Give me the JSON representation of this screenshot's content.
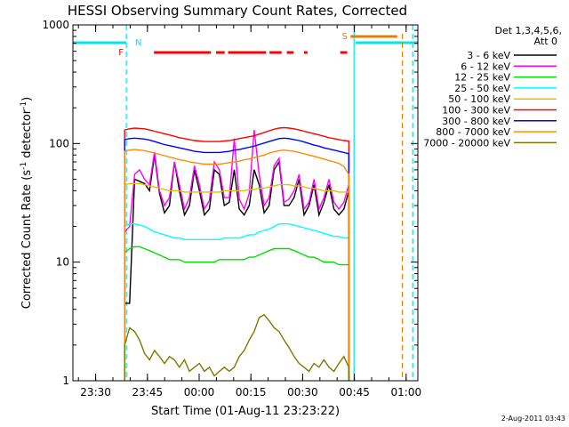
{
  "chart_data": {
    "type": "line",
    "title": "HESSI Observing Summary Count Rates, Corrected",
    "xlabel": "Start Time (01-Aug-11 23:23:22)",
    "ylabel_main": "Corrected Count Rate (s",
    "ylabel_sup1": "-1",
    "ylabel_mid": " detector",
    "ylabel_sup2": "-1",
    "ylabel_end": ")",
    "yscale": "log",
    "ylim": [
      1,
      1000
    ],
    "y_ticks": [
      {
        "v": 1,
        "label": "1"
      },
      {
        "v": 10,
        "label": "10"
      },
      {
        "v": 100,
        "label": "100"
      },
      {
        "v": 1000,
        "label": "1000"
      }
    ],
    "x_unit": "minutes since 23:23:22",
    "xlim": [
      0,
      100
    ],
    "x_ticks": [
      {
        "v": 6.6,
        "label": "23:30"
      },
      {
        "v": 21.6,
        "label": "23:45"
      },
      {
        "v": 36.6,
        "label": "00:00"
      },
      {
        "v": 51.6,
        "label": "00:15"
      },
      {
        "v": 66.6,
        "label": "00:30"
      },
      {
        "v": 81.6,
        "label": "00:45"
      },
      {
        "v": 96.6,
        "label": "01:00"
      }
    ],
    "legend_placement": "right",
    "legend_title_1": "Det 1,3,4,5,6,",
    "legend_title_2": "Att 0",
    "data_start": 15,
    "data_end": 80,
    "series": [
      {
        "name": "3 - 6 keV",
        "color": "#000000",
        "values": [
          4.5,
          4.5,
          50,
          48,
          46,
          40,
          80,
          38,
          26,
          30,
          70,
          40,
          25,
          30,
          60,
          40,
          25,
          28,
          60,
          55,
          30,
          32,
          60,
          28,
          25,
          30,
          60,
          45,
          26,
          30,
          60,
          70,
          30,
          30,
          35,
          50,
          25,
          30,
          45,
          25,
          32,
          45,
          28,
          25,
          28,
          40
        ]
      },
      {
        "name": "6 - 12 keV",
        "color": "#ff00ff",
        "values": [
          18,
          20,
          55,
          60,
          50,
          45,
          85,
          40,
          30,
          35,
          70,
          45,
          28,
          35,
          65,
          45,
          28,
          33,
          70,
          60,
          35,
          35,
          110,
          34,
          28,
          38,
          130,
          55,
          30,
          35,
          65,
          75,
          32,
          34,
          40,
          55,
          28,
          32,
          50,
          28,
          35,
          50,
          32,
          28,
          32,
          45
        ]
      },
      {
        "name": "12 - 25 keV",
        "color": "#00e000",
        "values": [
          12,
          13,
          13.5,
          13.5,
          13,
          12.5,
          12,
          11.5,
          11,
          10.5,
          10.5,
          10.5,
          10,
          10,
          10,
          10,
          10,
          10,
          10,
          10.5,
          10.5,
          10.5,
          10.5,
          10.5,
          10.5,
          11,
          11,
          11.5,
          12,
          12.5,
          13,
          13,
          13,
          13,
          12.5,
          12,
          11.5,
          11,
          11,
          10.5,
          10,
          10,
          10,
          9.5,
          9.5,
          9.5
        ]
      },
      {
        "name": "25 - 50 keV",
        "color": "#00ffff",
        "values": [
          20,
          21,
          21,
          20.5,
          20,
          19,
          18,
          17.5,
          17,
          16.5,
          16,
          16,
          15.5,
          15.5,
          15.5,
          15.5,
          15.5,
          15.5,
          15.5,
          15.5,
          16,
          16,
          16,
          16,
          16.5,
          17,
          17,
          18,
          18.5,
          19,
          20,
          21,
          21,
          21,
          20.5,
          20,
          19.5,
          19,
          18.5,
          18,
          17.5,
          17,
          16.5,
          16.5,
          16,
          16
        ]
      },
      {
        "name": "50 - 100 keV",
        "color": "#e0c000",
        "values": [
          45,
          46,
          46,
          46,
          45,
          44,
          43,
          42,
          41,
          40,
          40,
          40,
          39,
          39,
          39,
          39,
          39,
          39,
          39,
          39,
          40,
          40,
          40,
          40,
          40,
          41,
          41,
          42,
          42,
          43,
          44,
          45,
          45,
          45,
          44,
          44,
          43,
          42,
          42,
          41,
          40,
          40,
          40,
          39,
          39,
          39
        ]
      },
      {
        "name": "100 - 300 keV",
        "color": "#ff0000",
        "values": [
          130,
          133,
          135,
          134,
          133,
          130,
          127,
          124,
          121,
          118,
          115,
          112,
          110,
          108,
          106,
          105,
          104,
          104,
          104,
          104,
          105,
          106,
          108,
          110,
          112,
          114,
          116,
          120,
          124,
          128,
          132,
          135,
          136,
          135,
          133,
          130,
          127,
          124,
          121,
          118,
          115,
          112,
          110,
          108,
          106,
          105
        ]
      },
      {
        "name": "300 - 800 keV",
        "color": "#0000ff",
        "values": [
          108,
          110,
          111,
          110,
          109,
          107,
          104,
          101,
          98,
          96,
          94,
          92,
          90,
          88,
          86,
          85,
          84,
          84,
          84,
          84,
          85,
          86,
          88,
          89,
          91,
          93,
          95,
          98,
          101,
          104,
          107,
          110,
          111,
          110,
          108,
          106,
          103,
          100,
          97,
          95,
          92,
          90,
          88,
          86,
          84,
          82
        ]
      },
      {
        "name": "800 - 7000 keV",
        "color": "#ff8c00",
        "values": [
          86,
          88,
          89,
          88,
          87,
          85,
          83,
          81,
          79,
          77,
          75,
          73,
          72,
          70,
          69,
          68,
          67,
          67,
          67,
          67,
          68,
          69,
          70,
          71,
          73,
          74,
          76,
          78,
          80,
          83,
          85,
          87,
          88,
          87,
          86,
          84,
          82,
          80,
          78,
          76,
          74,
          72,
          70,
          68,
          64,
          55
        ]
      },
      {
        "name": "7000 - 20000 keV",
        "color": "#7a7a00",
        "values": [
          2,
          2.8,
          2.6,
          2.2,
          1.7,
          1.5,
          1.8,
          1.6,
          1.4,
          1.6,
          1.5,
          1.3,
          1.5,
          1.2,
          1.3,
          1.4,
          1.2,
          1.3,
          1.1,
          1.2,
          1.3,
          1.2,
          1.3,
          1.6,
          1.8,
          2.2,
          2.6,
          3.4,
          3.6,
          3.2,
          2.8,
          2.6,
          2.2,
          1.9,
          1.6,
          1.4,
          1.3,
          1.2,
          1.4,
          1.3,
          1.5,
          1.3,
          1.2,
          1.4,
          1.6,
          1.3
        ]
      }
    ],
    "annotations": {
      "F_label": "F",
      "N_label": "N",
      "S_label": "S",
      "flare_segments": [
        [
          23.5,
          40
        ],
        [
          41.5,
          44
        ],
        [
          45,
          56
        ],
        [
          57,
          60.5
        ],
        [
          62,
          64
        ],
        [
          67,
          68
        ],
        [
          77.5,
          79.5
        ]
      ],
      "saa_segment": [
        80.5,
        94
      ],
      "night_segments": [
        [
          0,
          15.5
        ],
        [
          82,
          100
        ]
      ],
      "cyan_vlines": [
        15.5,
        81.5,
        98.5
      ],
      "orange_vline": 95.5
    },
    "timestamp": "2-Aug-2011 03:43"
  }
}
